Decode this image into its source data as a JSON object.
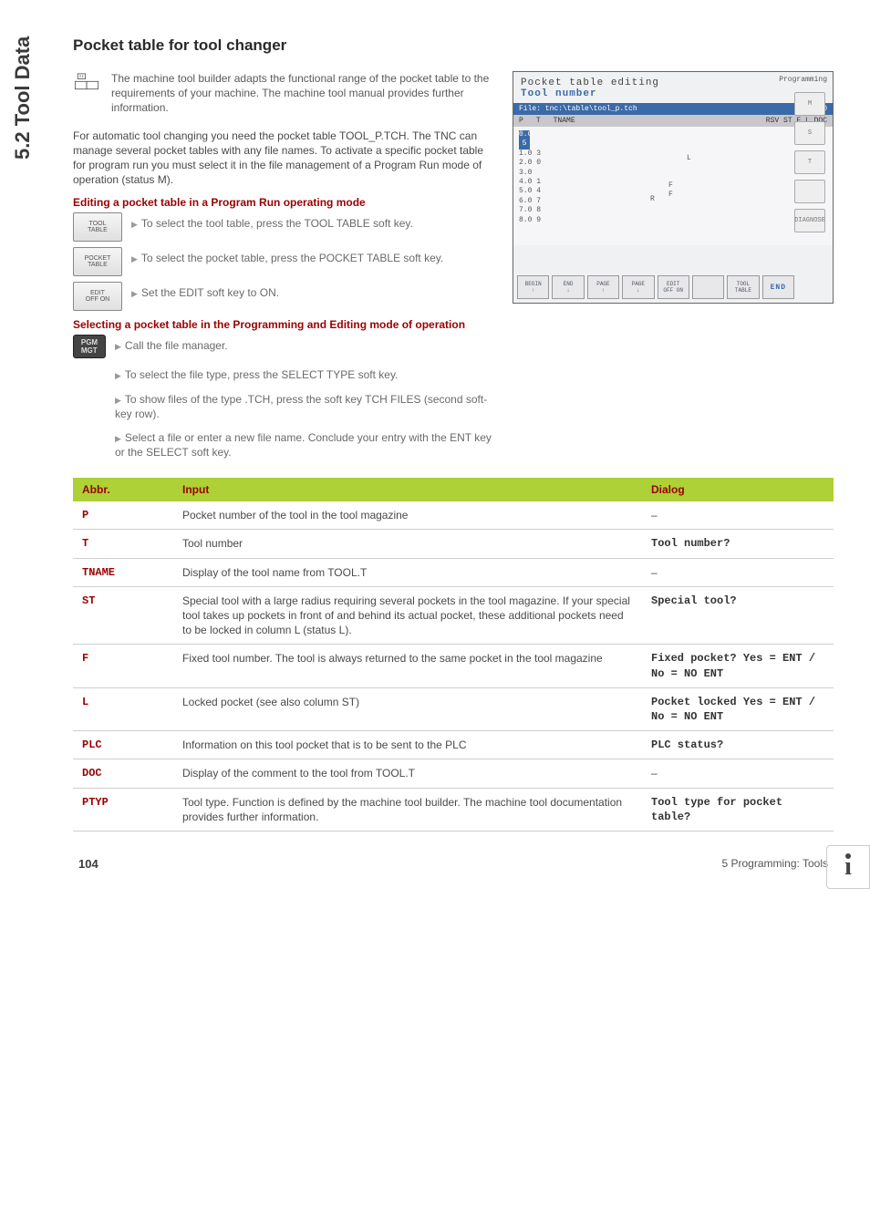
{
  "sideTab": "5.2 Tool Data",
  "heading": "Pocket table for tool changer",
  "note": "The machine tool builder adapts the functional range of the pocket table to the requirements of your machine. The machine tool manual provides further information.",
  "intro": "For automatic tool changing you need the pocket table TOOL_P.TCH. The TNC can manage several pocket tables with any file names. To activate a specific pocket table for program run you must select it in the file management of a Program Run mode of operation (status M).",
  "sub1": "Editing a pocket table in a Program Run operating mode",
  "steps1": {
    "b1": "TOOL\nTABLE",
    "t1": "To select the tool table, press the TOOL TABLE soft key.",
    "b2": "POCKET\nTABLE",
    "t2": "To select the pocket table, press the POCKET TABLE soft key.",
    "b3": "EDIT\nOFF  ON",
    "t3": "Set the EDIT soft key to ON."
  },
  "sub2": "Selecting a pocket table in the Programming and Editing mode of operation",
  "steps2": {
    "b1": "PGM\nMGT",
    "t1": "Call the file manager.",
    "t2": "To select the file type, press the SELECT TYPE soft key.",
    "t3": "To show files of the type .TCH, press the soft key TCH FILES (second soft-key row).",
    "t4": "Select a file or enter a new file name. Conclude your entry with the ENT key or the SELECT soft key."
  },
  "screenshot": {
    "title": "Pocket table editing",
    "subtitle": "Tool number",
    "file_l": "File:   tnc:\\table\\tool_p.tch",
    "file_r": "Line:   0",
    "hdr": [
      "P",
      "T",
      "TNAME",
      "RSV ST  F   L   DOC"
    ],
    "rows": [
      "0.0  5",
      "1.0  3",
      "2.0  0",
      "3.0",
      "4.0  1",
      "5.0  4",
      "6.0  7",
      "7.0  8",
      "8.0  9"
    ],
    "marks": {
      "L": "L",
      "F": "F\nF",
      "R": "R"
    },
    "mode": "Programming",
    "right": [
      "M",
      "S",
      "T",
      "",
      "DIAGNOSE"
    ],
    "softkeys": [
      "BEGIN\n↑",
      "END\n↓",
      "PAGE\n↑",
      "PAGE\n↓",
      "EDIT\nOFF  ON",
      "",
      "TOOL\nTABLE",
      "END"
    ]
  },
  "table": {
    "headers": {
      "c1": "Abbr.",
      "c2": "Input",
      "c3": "Dialog"
    },
    "rows": [
      {
        "a": "P",
        "i": "Pocket number of the tool in the tool magazine",
        "d": "–"
      },
      {
        "a": "T",
        "i": "Tool number",
        "d": "Tool number?"
      },
      {
        "a": "TNAME",
        "i": "Display of the tool name from TOOL.T",
        "d": "–"
      },
      {
        "a": "ST",
        "i": "Special tool with a large radius requiring several pockets in the tool magazine. If your special tool takes up pockets in front of and behind its actual pocket, these additional pockets need to be locked in column L (status L).",
        "d": "Special tool?"
      },
      {
        "a": "F",
        "i": "Fixed tool number. The tool is always returned to the same pocket in the tool magazine",
        "d": "Fixed pocket? Yes = ENT / No = NO ENT"
      },
      {
        "a": "L",
        "i": "Locked pocket (see also column ST)",
        "d": "Pocket locked Yes = ENT / No = NO ENT"
      },
      {
        "a": "PLC",
        "i": "Information on this tool pocket that is to be sent to the PLC",
        "d": "PLC status?"
      },
      {
        "a": "DOC",
        "i": "Display of the comment to the tool from TOOL.T",
        "d": "–"
      },
      {
        "a": "PTYP",
        "i": "Tool type. Function is defined by the machine tool builder. The machine tool documentation provides further information.",
        "d": "Tool type for pocket table?"
      }
    ]
  },
  "footer": {
    "page": "104",
    "section": "5 Programming: Tools"
  },
  "colors": {
    "headerGreen": "#add136",
    "accentRed": "#9a0000"
  }
}
